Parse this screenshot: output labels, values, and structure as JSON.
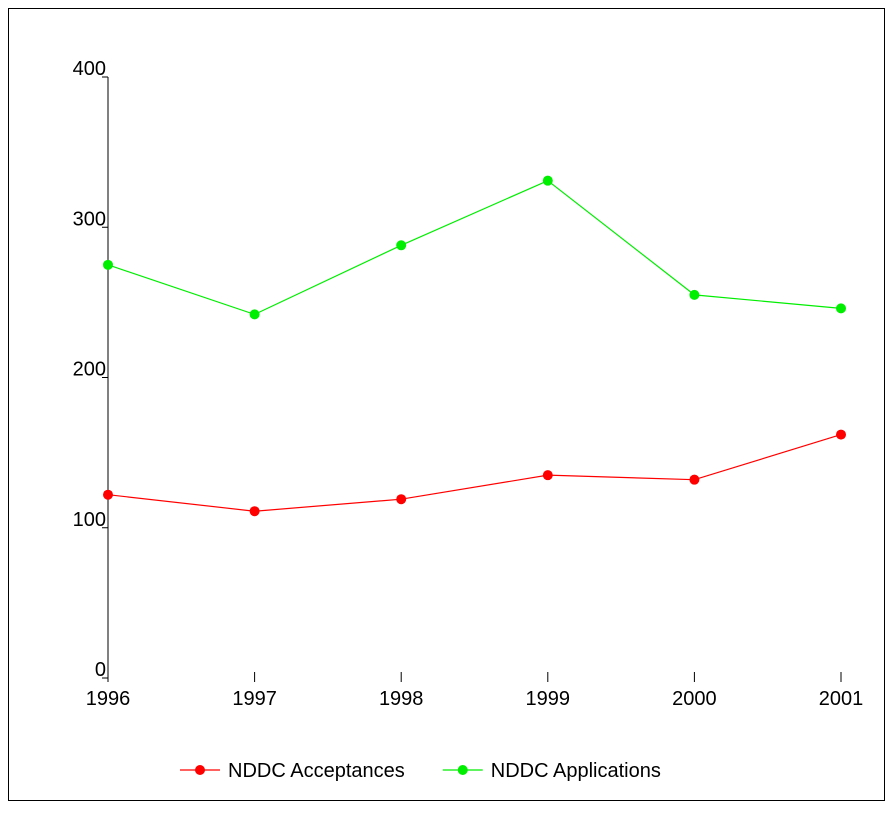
{
  "chart_data": {
    "type": "line",
    "x": [
      1996,
      1997,
      1998,
      1999,
      2000,
      2001
    ],
    "xlim": [
      1996,
      2001
    ],
    "xticks": [
      1996,
      1997,
      1998,
      1999,
      2000,
      2001
    ],
    "ylim": [
      0,
      400
    ],
    "yticks": [
      0,
      100,
      200,
      300,
      400
    ],
    "legend": "bottom",
    "series": [
      {
        "name": "NDDC Acceptances",
        "color": "#ff0000",
        "values": [
          122,
          111,
          119,
          135,
          132,
          162
        ]
      },
      {
        "name": "NDDC Applications",
        "color": "#00ee00",
        "values": [
          275,
          242,
          288,
          331,
          255,
          246
        ]
      }
    ]
  }
}
